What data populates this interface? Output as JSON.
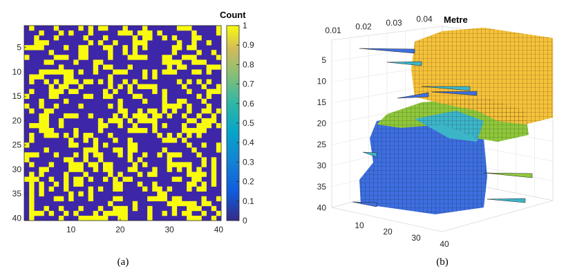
{
  "chart_data": [
    {
      "type": "heatmap",
      "caption": "(a)",
      "colorbar_label": "Count",
      "colorbar_ticks": [
        "0",
        "0.1",
        "0.2",
        "0.3",
        "0.4",
        "0.5",
        "0.6",
        "0.7",
        "0.8",
        "0.9",
        "1"
      ],
      "x_ticks": [
        "10",
        "20",
        "30",
        "40"
      ],
      "y_ticks": [
        "5",
        "10",
        "15",
        "20",
        "25",
        "30",
        "35",
        "40"
      ],
      "xlim": [
        1,
        40
      ],
      "ylim": [
        1,
        40
      ],
      "colors": {
        "low": "#3E26A8",
        "high": "#F9FB0E"
      },
      "matrix_size": [
        40,
        40
      ],
      "value_range": [
        0,
        1
      ]
    },
    {
      "type": "surface",
      "caption": "(b)",
      "z_axis_label": "Metre",
      "z_ticks": [
        "0.01",
        "0.02",
        "0.03",
        "0.04"
      ],
      "y_ticks": [
        "5",
        "10",
        "15",
        "20",
        "25",
        "30",
        "35",
        "40"
      ],
      "x_ticks": [
        "10",
        "20",
        "30",
        "40"
      ],
      "colormap": [
        "#3E6FE0",
        "#3DB5C9",
        "#8FC83C",
        "#F6C23A"
      ]
    }
  ]
}
